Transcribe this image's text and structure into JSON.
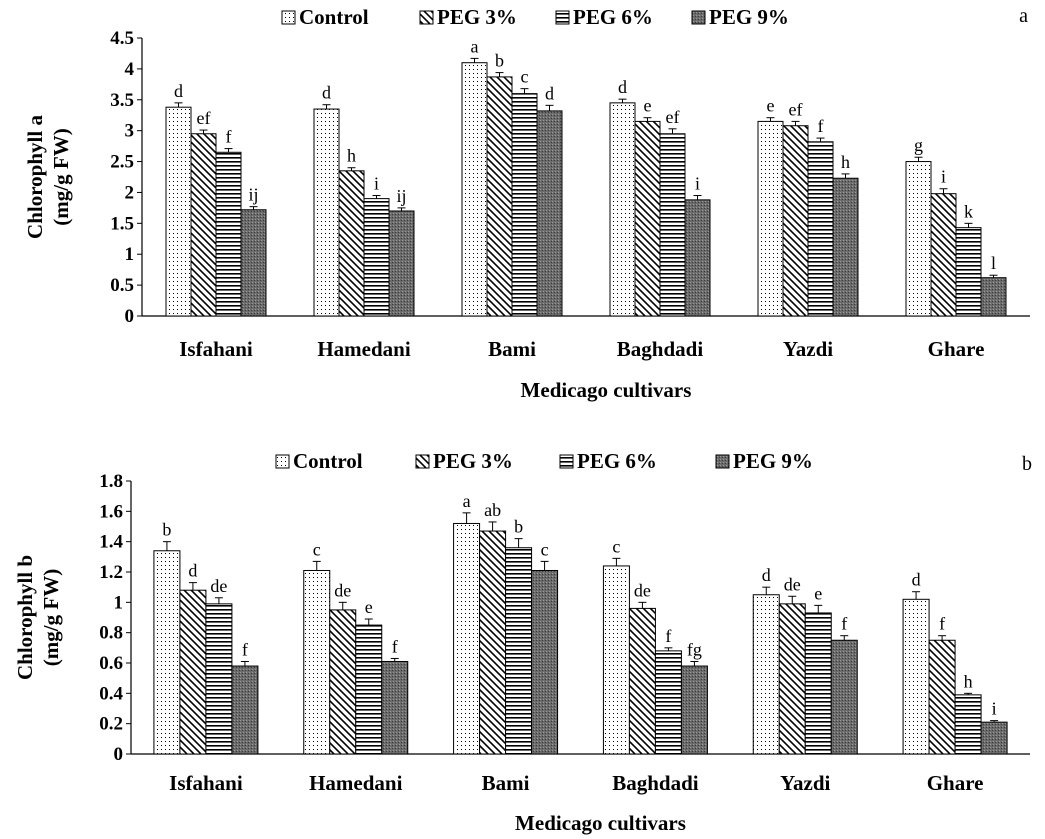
{
  "legend": [
    "Control",
    "PEG 3%",
    "PEG 6%",
    "PEG 9%"
  ],
  "series_fills": [
    "dots",
    "diag",
    "horiz",
    "dark"
  ],
  "chart_data": [
    {
      "type": "bar",
      "panel_label": "a",
      "ylabel_line1": "Chlorophyll a",
      "ylabel_line2": "(mg/g FW)",
      "xlabel": "Medicago cultivars",
      "ylim": [
        0,
        4.5
      ],
      "yticks": [
        "0",
        "0.5",
        "1",
        "1.5",
        "2",
        "2.5",
        "3",
        "3.5",
        "4",
        "4.5"
      ],
      "categories": [
        "Isfahani",
        "Hamedani",
        "Bami",
        "Baghdadi",
        "Yazdi",
        "Ghare"
      ],
      "series": [
        {
          "name": "Control",
          "values": [
            3.38,
            3.35,
            4.1,
            3.45,
            3.15,
            2.5
          ],
          "errors": [
            0.07,
            0.07,
            0.07,
            0.06,
            0.06,
            0.07
          ],
          "letters": [
            "d",
            "d",
            "a",
            "d",
            "e",
            "g"
          ]
        },
        {
          "name": "PEG 3%",
          "values": [
            2.95,
            2.35,
            3.87,
            3.15,
            3.08,
            1.98
          ],
          "errors": [
            0.06,
            0.05,
            0.07,
            0.06,
            0.07,
            0.08
          ],
          "letters": [
            "ef",
            "h",
            "b",
            "e",
            "ef",
            "i"
          ]
        },
        {
          "name": "PEG 6%",
          "values": [
            2.65,
            1.9,
            3.6,
            2.95,
            2.82,
            1.43
          ],
          "errors": [
            0.06,
            0.05,
            0.08,
            0.08,
            0.06,
            0.07
          ],
          "letters": [
            "f",
            "i",
            "c",
            "ef",
            "f",
            "k"
          ]
        },
        {
          "name": "PEG 9%",
          "values": [
            1.72,
            1.7,
            3.32,
            1.88,
            2.23,
            0.62
          ],
          "errors": [
            0.05,
            0.05,
            0.09,
            0.07,
            0.07,
            0.04
          ],
          "letters": [
            "ij",
            "ij",
            "d",
            "i",
            "h",
            "l"
          ]
        }
      ]
    },
    {
      "type": "bar",
      "panel_label": "b",
      "ylabel_line1": "Chlorophyll  b",
      "ylabel_line2": "(mg/g FW)",
      "xlabel": "Medicago cultivars",
      "ylim": [
        0,
        1.8
      ],
      "yticks": [
        "0",
        "0.2",
        "0.4",
        "0.6",
        "0.8",
        "1",
        "1.2",
        "1.4",
        "1.6",
        "1.8"
      ],
      "categories": [
        "Isfahani",
        "Hamedani",
        "Bami",
        "Baghdadi",
        "Yazdi",
        "Ghare"
      ],
      "series": [
        {
          "name": "Control",
          "values": [
            1.34,
            1.21,
            1.52,
            1.24,
            1.05,
            1.02
          ],
          "errors": [
            0.06,
            0.06,
            0.07,
            0.05,
            0.05,
            0.05
          ],
          "letters": [
            "b",
            "c",
            "a",
            "c",
            "d",
            "d"
          ]
        },
        {
          "name": "PEG 3%",
          "values": [
            1.08,
            0.95,
            1.47,
            0.96,
            0.99,
            0.75
          ],
          "errors": [
            0.05,
            0.05,
            0.06,
            0.04,
            0.05,
            0.03
          ],
          "letters": [
            "d",
            "de",
            "ab",
            "de",
            "de",
            "f"
          ]
        },
        {
          "name": "PEG 6%",
          "values": [
            0.99,
            0.85,
            1.36,
            0.68,
            0.93,
            0.39
          ],
          "errors": [
            0.04,
            0.04,
            0.06,
            0.02,
            0.05,
            0.01
          ],
          "letters": [
            "de",
            "e",
            "b",
            "f",
            "e",
            "h"
          ]
        },
        {
          "name": "PEG 9%",
          "values": [
            0.58,
            0.61,
            1.21,
            0.58,
            0.75,
            0.21
          ],
          "errors": [
            0.03,
            0.02,
            0.06,
            0.03,
            0.03,
            0.01
          ],
          "letters": [
            "f",
            "f",
            "c",
            "fg",
            "f",
            "i"
          ]
        }
      ]
    }
  ]
}
